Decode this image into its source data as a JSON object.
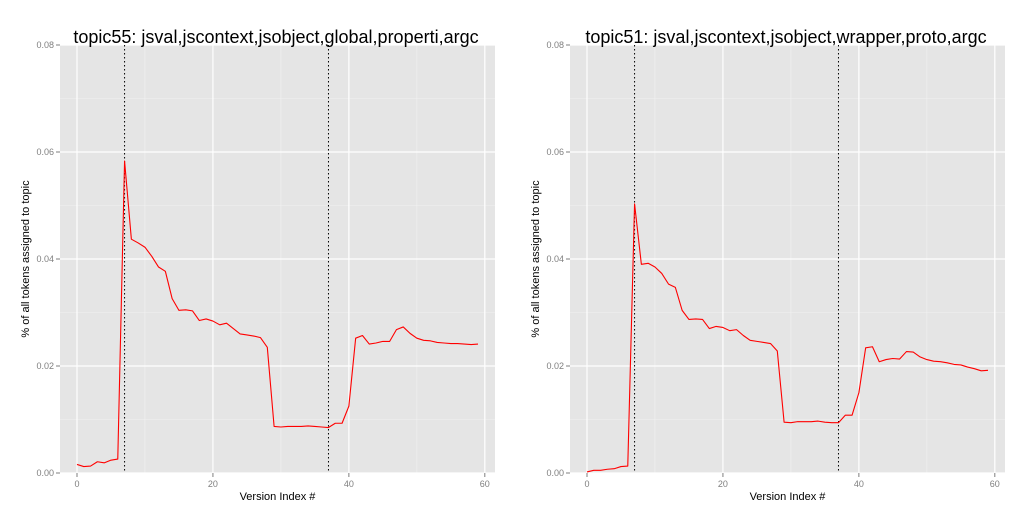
{
  "colors": {
    "panel_bg": "#e5e5e5",
    "grid_major": "#ffffff",
    "grid_minor": "#f2f2f2",
    "line": "#ff0000",
    "vline": "#000000",
    "tick_text": "#7f7f7f"
  },
  "chart_data": [
    {
      "type": "line",
      "title": "topic55: jsval,jscontext,jsobject,global,properti,argc",
      "xlabel": "Version Index #",
      "ylabel": "% of all tokens assigned to topic",
      "xlim": [
        -2.5,
        61.5
      ],
      "ylim": [
        0,
        0.08
      ],
      "x_ticks": [
        0,
        20,
        40,
        60
      ],
      "x_tick_labels": [
        "0",
        "20",
        "40",
        "60"
      ],
      "y_ticks": [
        0,
        0.02,
        0.04,
        0.06,
        0.08
      ],
      "y_tick_labels": [
        "0.00",
        "0.02",
        "0.04",
        "0.06",
        "0.08"
      ],
      "grid": true,
      "vlines": [
        7,
        37
      ],
      "series": [
        {
          "x": [
            0,
            1,
            2,
            3,
            4,
            5,
            6,
            7,
            8,
            9,
            10,
            11,
            12,
            13,
            14,
            15,
            16,
            17,
            18,
            19,
            20,
            21,
            22,
            23,
            24,
            25,
            26,
            27,
            28,
            29,
            30,
            31,
            32,
            33,
            34,
            35,
            36,
            37,
            38,
            39,
            40,
            41,
            42,
            43,
            44,
            45,
            46,
            47,
            48,
            49,
            50,
            51,
            52,
            53,
            54,
            55,
            56,
            57,
            58,
            59
          ],
          "y": [
            0.0016,
            0.0012,
            0.0013,
            0.0021,
            0.0019,
            0.0024,
            0.0026,
            0.0583,
            0.0437,
            0.043,
            0.0422,
            0.0405,
            0.0385,
            0.0377,
            0.0326,
            0.0304,
            0.0305,
            0.0303,
            0.0285,
            0.0288,
            0.0284,
            0.0277,
            0.028,
            0.027,
            0.026,
            0.0258,
            0.0256,
            0.0253,
            0.0235,
            0.0087,
            0.0086,
            0.0087,
            0.0087,
            0.0087,
            0.0088,
            0.0087,
            0.0086,
            0.0085,
            0.0093,
            0.0093,
            0.0125,
            0.0252,
            0.0257,
            0.0241,
            0.0243,
            0.0246,
            0.0246,
            0.0268,
            0.0273,
            0.0261,
            0.0252,
            0.0248,
            0.0247,
            0.0244,
            0.0243,
            0.0242,
            0.0242,
            0.0241,
            0.024,
            0.0241
          ]
        }
      ]
    },
    {
      "type": "line",
      "title": "topic51: jsval,jscontext,jsobject,wrapper,proto,argc",
      "xlabel": "Version Index #",
      "ylabel": "% of all tokens assigned to topic",
      "xlim": [
        -2.5,
        61.5
      ],
      "ylim": [
        0,
        0.08
      ],
      "x_ticks": [
        0,
        20,
        40,
        60
      ],
      "x_tick_labels": [
        "0",
        "20",
        "40",
        "60"
      ],
      "y_ticks": [
        0,
        0.02,
        0.04,
        0.06,
        0.08
      ],
      "y_tick_labels": [
        "0.00",
        "0.02",
        "0.04",
        "0.06",
        "0.08"
      ],
      "grid": true,
      "vlines": [
        7,
        37
      ],
      "series": [
        {
          "x": [
            0,
            1,
            2,
            3,
            4,
            5,
            6,
            7,
            8,
            9,
            10,
            11,
            12,
            13,
            14,
            15,
            16,
            17,
            18,
            19,
            20,
            21,
            22,
            23,
            24,
            25,
            26,
            27,
            28,
            29,
            30,
            31,
            32,
            33,
            34,
            35,
            36,
            37,
            38,
            39,
            40,
            41,
            42,
            43,
            44,
            45,
            46,
            47,
            48,
            49,
            50,
            51,
            52,
            53,
            54,
            55,
            56,
            57,
            58,
            59
          ],
          "y": [
            0.0002,
            0.0005,
            0.0005,
            0.0007,
            0.0008,
            0.0012,
            0.0013,
            0.0503,
            0.039,
            0.0392,
            0.0385,
            0.0373,
            0.0353,
            0.0347,
            0.0304,
            0.0287,
            0.0288,
            0.0287,
            0.027,
            0.0274,
            0.0272,
            0.0266,
            0.0268,
            0.0257,
            0.0248,
            0.0246,
            0.0244,
            0.0242,
            0.0228,
            0.0095,
            0.0094,
            0.0096,
            0.0096,
            0.0096,
            0.0097,
            0.0095,
            0.0094,
            0.0094,
            0.0108,
            0.0108,
            0.015,
            0.0234,
            0.0236,
            0.0208,
            0.0212,
            0.0214,
            0.0213,
            0.0227,
            0.0226,
            0.0217,
            0.0212,
            0.0209,
            0.0208,
            0.0206,
            0.0203,
            0.0202,
            0.0198,
            0.0195,
            0.0191,
            0.0192
          ]
        }
      ]
    }
  ]
}
